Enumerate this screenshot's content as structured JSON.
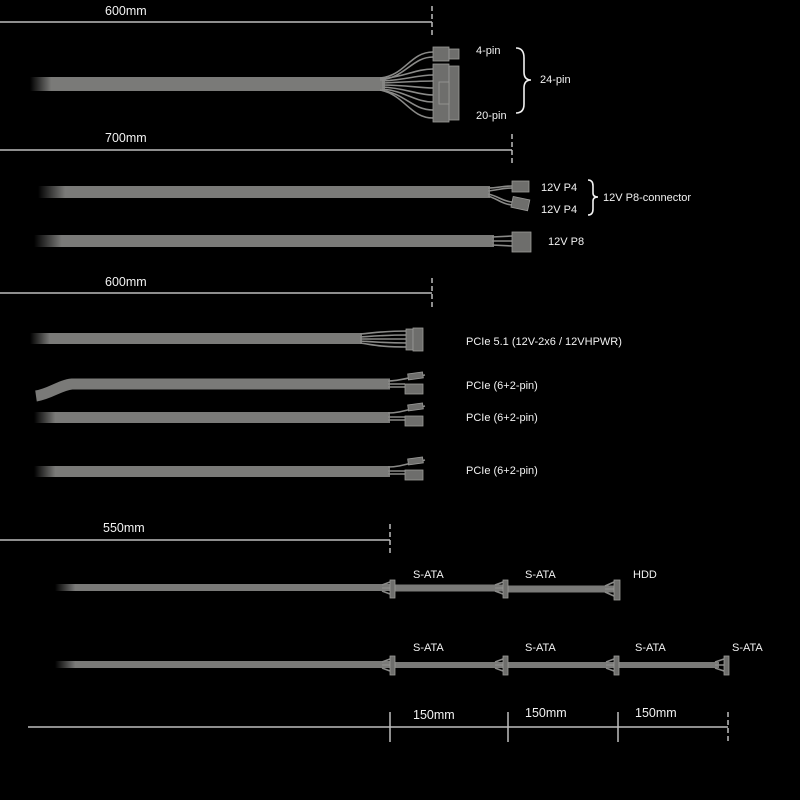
{
  "dimensions": {
    "main_24pin_length": "600mm",
    "cpu_length": "700mm",
    "pcie_length": "600mm",
    "sata_length": "550mm",
    "sata_spacing": [
      "150mm",
      "150mm",
      "150mm"
    ]
  },
  "atx_cable": {
    "label_4pin": "4-pin",
    "label_20pin": "20-pin",
    "label_24pin": "24-pin"
  },
  "cpu_cables": {
    "p4_a": "12V P4",
    "p4_b": "12V P4",
    "p8_connector": "12V P8-connector",
    "p8": "12V P8"
  },
  "pcie_cables": [
    "PCIe 5.1 (12V-2x6 / 12VHPWR)",
    "PCIe (6+2-pin)",
    "PCIe (6+2-pin)",
    "PCIe (6+2-pin)"
  ],
  "sata_row1": [
    "S-ATA",
    "S-ATA",
    "HDD"
  ],
  "sata_row2": [
    "S-ATA",
    "S-ATA",
    "S-ATA",
    "S-ATA"
  ],
  "colors": {
    "background": "#000000",
    "cable": "#7a7a78",
    "text": "#f2f2f2"
  }
}
